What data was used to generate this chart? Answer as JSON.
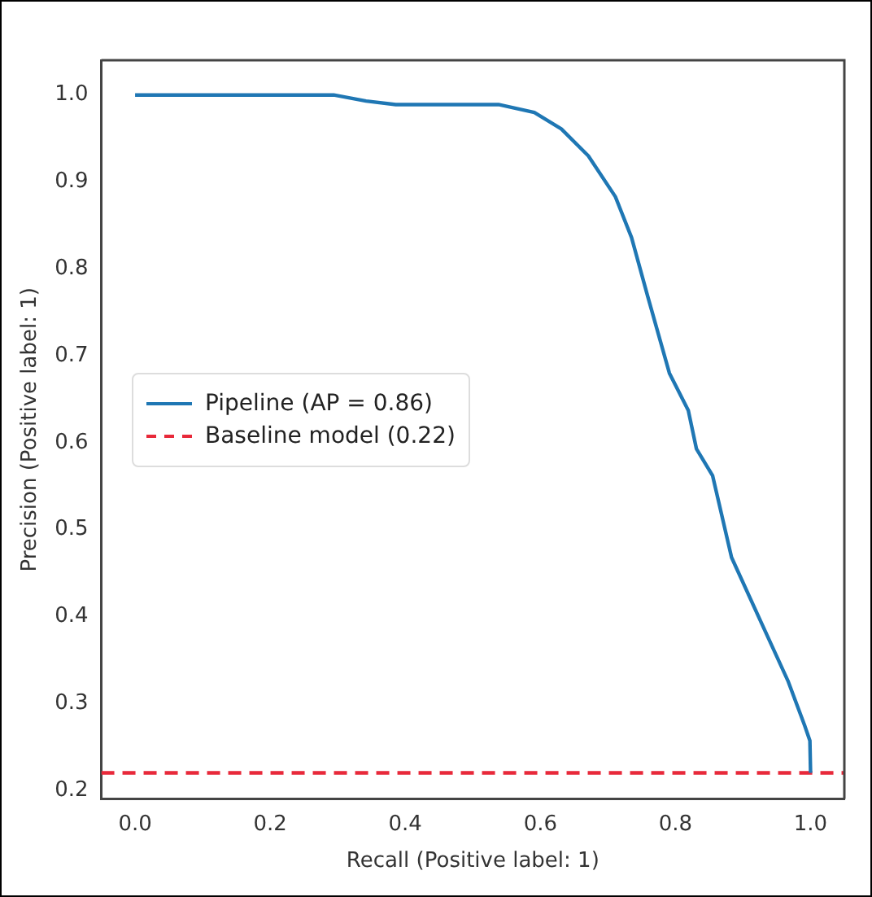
{
  "chart_data": {
    "type": "line",
    "xlabel": "Recall (Positive label: 1)",
    "ylabel": "Precision (Positive label: 1)",
    "xlim": [
      -0.05,
      1.05
    ],
    "ylim": [
      0.19,
      1.04
    ],
    "xticks": [
      {
        "value": 0,
        "label": "0.0"
      },
      0.2,
      0.4,
      0.6,
      0.8,
      {
        "value": 1,
        "label": "1.0"
      }
    ],
    "yticks": [
      0.2,
      0.3,
      0.4,
      0.5,
      0.6,
      0.7,
      0.8,
      0.9,
      {
        "value": 1,
        "label": "1.0"
      }
    ],
    "grid": false,
    "legend": "left",
    "marker": "none",
    "series": [
      {
        "name": "Pipeline (AP = 0.86)",
        "color": "#1f77b4",
        "line_style": "solid",
        "x": [
          0,
          0.294,
          0.342,
          0.386,
          0.538,
          0.591,
          0.631,
          0.671,
          0.711,
          0.735,
          0.759,
          0.791,
          0.819,
          0.831,
          0.855,
          0.883,
          0.927,
          0.967,
          0.991,
          0.999,
          1.0
        ],
        "values": [
          1.0,
          1.0,
          0.993,
          0.989,
          0.989,
          0.98,
          0.961,
          0.93,
          0.883,
          0.836,
          0.768,
          0.68,
          0.637,
          0.593,
          0.562,
          0.468,
          0.393,
          0.325,
          0.275,
          0.257,
          0.22
        ]
      },
      {
        "name": "Baseline model (0.22)",
        "color": "#e8293a",
        "line_style": "dashed",
        "x": [
          -0.05,
          1.05
        ],
        "values": [
          0.22,
          0.22
        ]
      }
    ]
  }
}
